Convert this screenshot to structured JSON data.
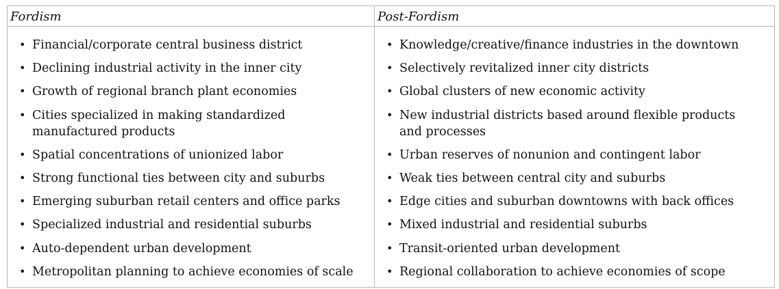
{
  "table": {
    "headers": [
      "Fordism",
      "Post-Fordism"
    ],
    "fordism_items": [
      "Financial/corporate central business district",
      "Declining industrial activity in the inner city",
      "Growth of regional branch plant economies",
      "Cities specialized in making standardized manufactured products",
      "Spatial concentrations of unionized labor",
      "Strong functional ties between city and suburbs",
      "Emerging suburban retail centers and office parks",
      "Specialized industrial and residential suburbs",
      "Auto-dependent urban development",
      "Metropolitan planning to achieve economies of scale"
    ],
    "post_fordism_items": [
      "Knowledge/creative/finance industries in the downtown",
      "Selectively revitalized inner city districts",
      "Global clusters of new economic activity",
      "New industrial districts based around flexible products and processes",
      "Urban reserves of nonunion and contingent labor",
      "Weak ties between central city and suburbs",
      "Edge cities and suburban downtowns with back offices",
      "Mixed industrial and residential suburbs",
      "Transit-oriented urban development",
      "Regional collaboration to achieve economies of scope"
    ]
  }
}
